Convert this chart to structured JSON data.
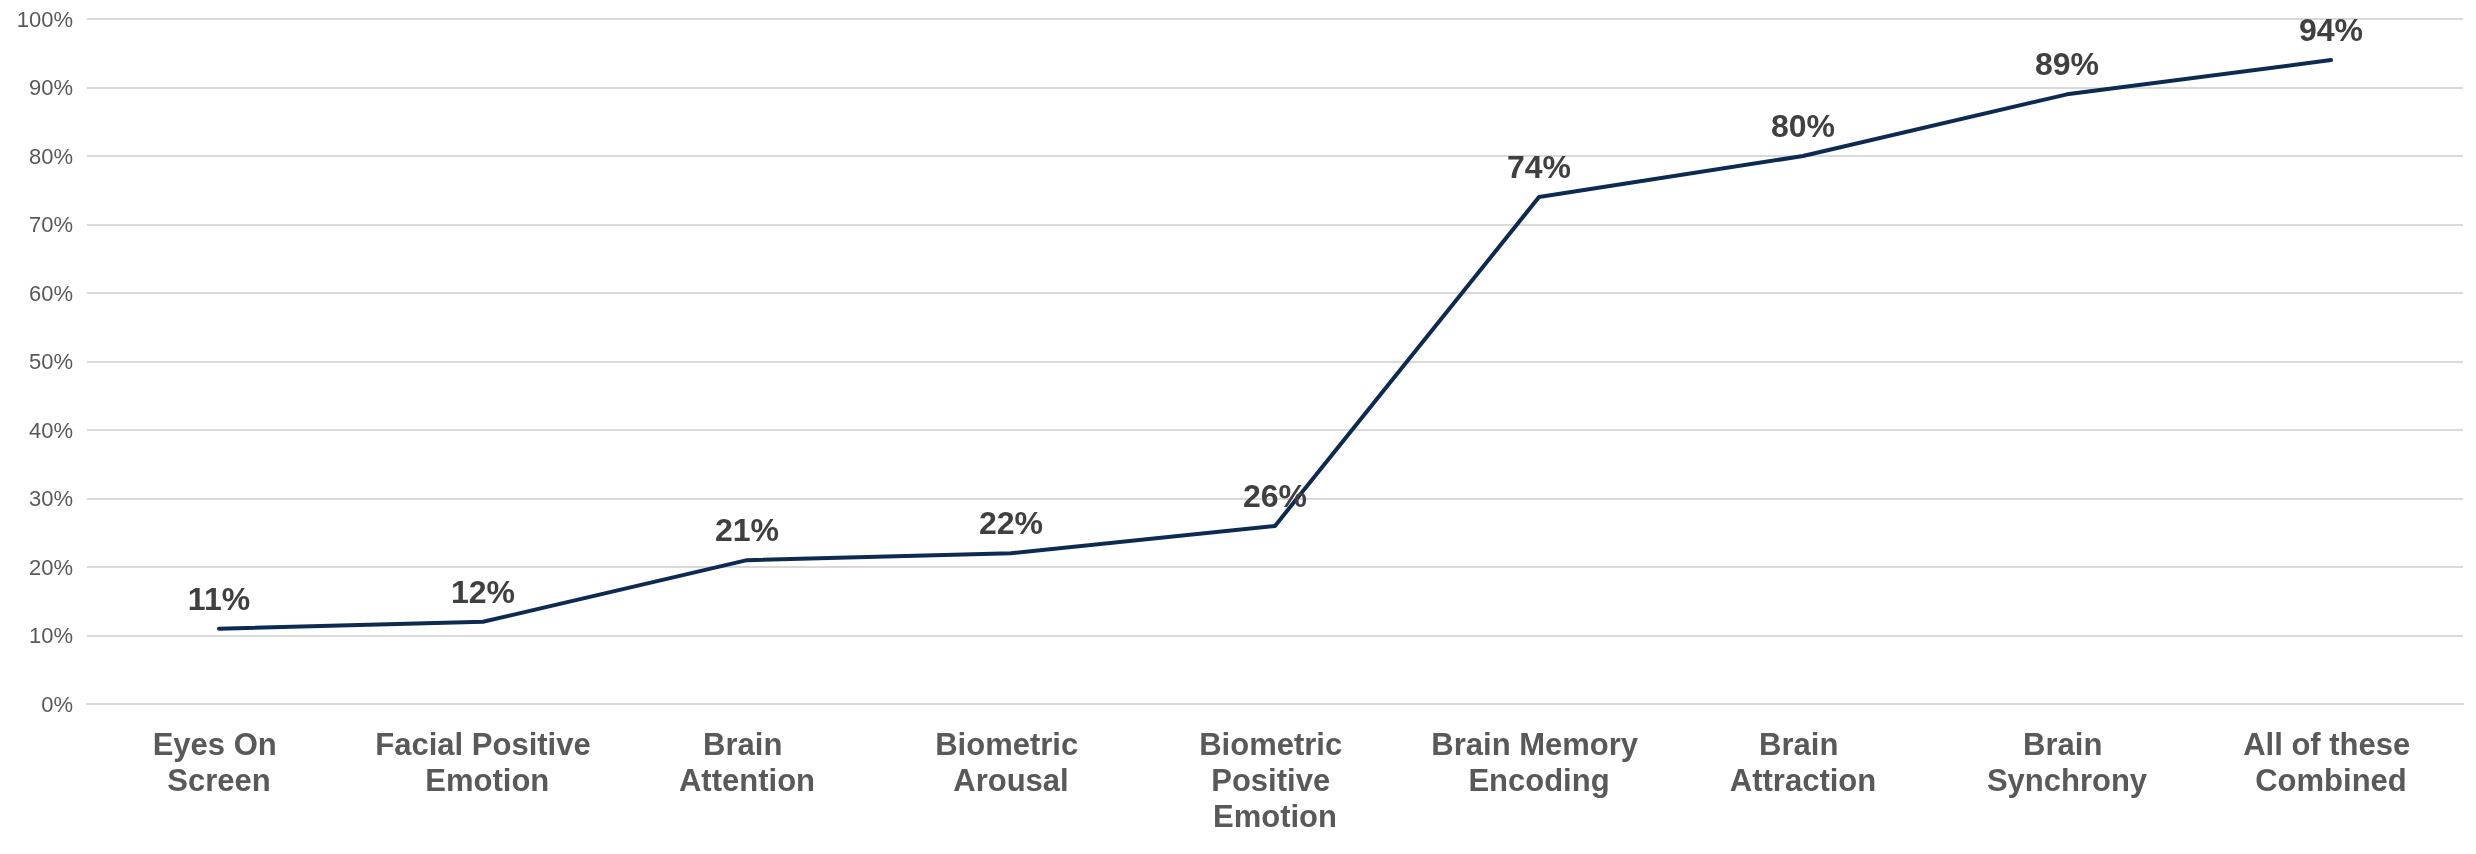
{
  "chart_data": {
    "type": "line",
    "categories": [
      "Eyes On Screen",
      "Facial Positive Emotion",
      "Brain Attention",
      "Biometric Arousal",
      "Biometric Positive Emotion",
      "Brain Memory Encoding",
      "Brain Attraction",
      "Brain Synchrony",
      "All of these Combined"
    ],
    "series": [
      {
        "color": "#0d2b52",
        "values": [
          11,
          12,
          21,
          22,
          26,
          74,
          80,
          89,
          94
        ],
        "value_labels": [
          "11%",
          "12%",
          "21%",
          "22%",
          "26%",
          "74%",
          "80%",
          "89%",
          "94%"
        ]
      }
    ],
    "ylim": [
      0,
      100
    ],
    "yticks": [
      {
        "value": 0,
        "label": "0%"
      },
      {
        "value": 10,
        "label": "10%"
      },
      {
        "value": 20,
        "label": "20%"
      },
      {
        "value": 30,
        "label": "30%"
      },
      {
        "value": 40,
        "label": "40%"
      },
      {
        "value": 50,
        "label": "50%"
      },
      {
        "value": 60,
        "label": "60%"
      },
      {
        "value": 70,
        "label": "70%"
      },
      {
        "value": 80,
        "label": "80%"
      },
      {
        "value": 90,
        "label": "90%"
      },
      {
        "value": 100,
        "label": "100%"
      }
    ],
    "grid": "y",
    "marker": "none",
    "line_style": "solid"
  }
}
